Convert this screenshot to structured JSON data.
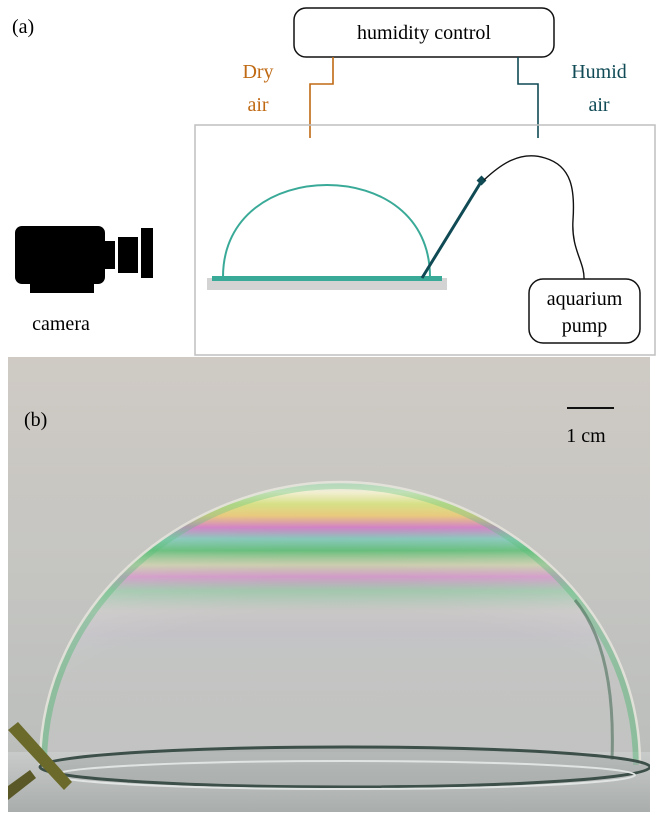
{
  "panel_a": {
    "label": "(a)",
    "humidity_box": "humidity control",
    "dry_air": {
      "line1": "Dry",
      "line2": "air",
      "color": "#c06a14"
    },
    "humid_air": {
      "line1": "Humid",
      "line2": "air",
      "color": "#0f4a55"
    },
    "camera_label": "camera",
    "pump": {
      "line1": "aquarium",
      "line2": "pump"
    },
    "bubble_color": "#3aaa98",
    "needle_color": "#0f4a55"
  },
  "panel_b": {
    "label": "(b)",
    "scale_label": "1 cm"
  }
}
